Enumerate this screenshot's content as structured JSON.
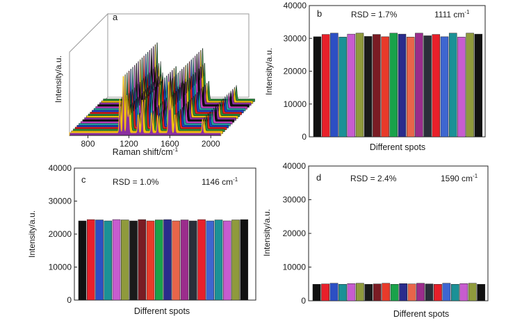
{
  "panels": {
    "a": {
      "letter": "a",
      "xlabel": "Raman shift/cm",
      "xlabel_sup": "-1",
      "ylabel": "Intensity/a.u.",
      "xticks": [
        "800",
        "1200",
        "1600",
        "2000"
      ]
    },
    "b": {
      "letter": "b",
      "rsd": "RSD = 1.7%",
      "peak": "1111 cm",
      "peak_sup": "-1",
      "xlabel": "Different spots",
      "ylabel": "Intensity/a.u."
    },
    "c": {
      "letter": "c",
      "rsd": "RSD = 1.0%",
      "peak": "1146 cm",
      "peak_sup": "-1",
      "xlabel": "Different spots",
      "ylabel": "Intensity/a.u."
    },
    "d": {
      "letter": "d",
      "rsd": "RSD = 2.4%",
      "peak": "1590 cm",
      "peak_sup": "-1",
      "xlabel": "Different spots",
      "ylabel": "Intensity/a.u."
    }
  },
  "colors": {
    "bars": [
      "#111111",
      "#e8202a",
      "#2c4fc4",
      "#1b9196",
      "#c75ccf",
      "#8f9a3c",
      "#1a1a1a",
      "#7a1c24",
      "#e83a2a",
      "#19a24a",
      "#2a2c8c",
      "#e8654a",
      "#9b2c8c",
      "#2b2f3a",
      "#e8202a",
      "#3e66d0",
      "#1b9196",
      "#c75ccf",
      "#8f9a3c"
    ],
    "spectra": [
      "#8a2fa0",
      "#f0c010",
      "#2a8a3a",
      "#e02020",
      "#2040c0",
      "#20a0a0",
      "#c040c0",
      "#101010"
    ]
  },
  "chart_data": [
    {
      "type": "line",
      "panel": "a",
      "title": "",
      "xlabel": "Raman shift/cm-1",
      "ylabel": "Intensity/a.u.",
      "xlim": [
        620,
        2100
      ],
      "xticks": [
        800,
        1200,
        1600,
        2000
      ],
      "peaks_cm-1": [
        1111,
        1146,
        1180,
        1200,
        1290,
        1330,
        1420,
        1480,
        1590,
        1610,
        1650,
        1920
      ],
      "series_count": 19,
      "three_d_waterfall": true
    },
    {
      "type": "bar",
      "panel": "b",
      "xlabel": "Different spots",
      "ylabel": "Intensity/a.u.",
      "ylim": [
        0,
        40000
      ],
      "yticks": [
        0,
        10000,
        20000,
        30000,
        40000
      ],
      "annotations": [
        "RSD = 1.7%",
        "1111 cm-1"
      ],
      "values": [
        30500,
        31200,
        31600,
        30400,
        31300,
        31600,
        30600,
        31200,
        30500,
        31600,
        31300,
        30400,
        31600,
        30800,
        31200,
        30500,
        31600,
        30400,
        31600,
        31300
      ]
    },
    {
      "type": "bar",
      "panel": "c",
      "xlabel": "Different spots",
      "ylabel": "Intensity/a.u.",
      "ylim": [
        0,
        40000
      ],
      "yticks": [
        0,
        10000,
        20000,
        30000,
        40000
      ],
      "annotations": [
        "RSD = 1.0%",
        "1146 cm-1"
      ],
      "values": [
        24000,
        24400,
        24300,
        24000,
        24400,
        24300,
        24000,
        24400,
        24000,
        24300,
        24400,
        24000,
        24300,
        24000,
        24400,
        24000,
        24300,
        24000,
        24300,
        24400
      ]
    },
    {
      "type": "bar",
      "panel": "d",
      "xlabel": "Different spots",
      "ylabel": "Intensity/a.u.",
      "ylim": [
        0,
        40000
      ],
      "yticks": [
        0,
        10000,
        20000,
        30000,
        40000
      ],
      "annotations": [
        "RSD = 2.4%",
        "1590 cm-1"
      ],
      "values": [
        4900,
        5000,
        5200,
        4900,
        5100,
        5200,
        4900,
        5000,
        5200,
        4900,
        5100,
        5000,
        5200,
        5000,
        4900,
        5200,
        4900,
        5100,
        5200,
        4900
      ]
    }
  ]
}
